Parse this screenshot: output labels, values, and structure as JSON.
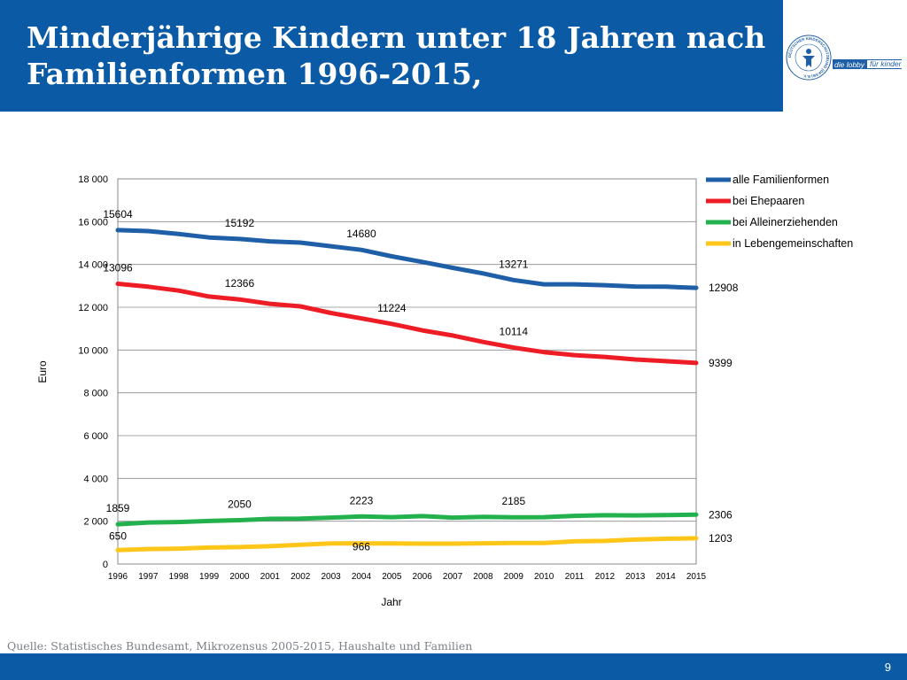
{
  "slide": {
    "title": "Minderjährige Kindern unter 18 Jahren nach Familienformen 1996-2015,",
    "source": "Quelle: Statistisches Bundesamt, Mikrozensus 2005-2015, Haushalte und Familien",
    "page_number": "9"
  },
  "logo": {
    "seal_text": "DEUTSCHER KINDERSCHUTZBUND (DKSB) E.V.",
    "tag_part1": "die lobby",
    "tag_part2": "für kinder"
  },
  "colors": {
    "header": "#0b5aa6",
    "alle": "#1f5fa8",
    "ehepaare": "#ee1c24",
    "alleinerziehende": "#22b14c",
    "lebensgemeinschaften": "#ffc61a"
  },
  "chart_data": {
    "type": "line",
    "xlabel": "Jahr",
    "ylabel": "Euro",
    "ylim": [
      0,
      18000
    ],
    "yticks": [
      0,
      2000,
      4000,
      6000,
      8000,
      10000,
      12000,
      14000,
      16000,
      18000
    ],
    "ytick_labels": [
      "0",
      "2 000",
      "4 000",
      "6 000",
      "8 000",
      "10 000",
      "12 000",
      "14 000",
      "16 000",
      "18 000"
    ],
    "x": [
      "1996",
      "1997",
      "1998",
      "1999",
      "2000",
      "2001",
      "2002",
      "2003",
      "2004",
      "2005",
      "2006",
      "2007",
      "2008",
      "2009",
      "2010",
      "2011",
      "2012",
      "2013",
      "2014",
      "2015"
    ],
    "grid": true,
    "legend_position": "right",
    "series": [
      {
        "name": "alle Familienformen",
        "color": "#1f5fa8",
        "values": [
          15604,
          15560,
          15420,
          15260,
          15192,
          15080,
          15020,
          14850,
          14680,
          14380,
          14120,
          13840,
          13580,
          13271,
          13070,
          13070,
          13030,
          12970,
          12960,
          12908
        ],
        "labels": [
          {
            "index": 0,
            "text": "15604"
          },
          {
            "index": 4,
            "text": "15192"
          },
          {
            "index": 8,
            "text": "14680"
          },
          {
            "index": 13,
            "text": "13271"
          },
          {
            "index": 19,
            "text": "12908"
          }
        ]
      },
      {
        "name": "bei Ehepaaren",
        "color": "#ee1c24",
        "values": [
          13096,
          12960,
          12780,
          12500,
          12366,
          12160,
          12040,
          11730,
          11480,
          11224,
          10920,
          10680,
          10380,
          10114,
          9900,
          9760,
          9680,
          9560,
          9480,
          9399
        ],
        "labels": [
          {
            "index": 0,
            "text": "13096"
          },
          {
            "index": 4,
            "text": "12366"
          },
          {
            "index": 9,
            "text": "11224"
          },
          {
            "index": 13,
            "text": "10114"
          },
          {
            "index": 19,
            "text": "9399"
          }
        ]
      },
      {
        "name": "bei Alleinerziehenden",
        "color": "#22b14c",
        "values": [
          1859,
          1940,
          1960,
          2010,
          2050,
          2110,
          2120,
          2170,
          2223,
          2190,
          2240,
          2170,
          2200,
          2185,
          2190,
          2250,
          2280,
          2270,
          2290,
          2306
        ],
        "labels": [
          {
            "index": 0,
            "text": "1859"
          },
          {
            "index": 4,
            "text": "2050"
          },
          {
            "index": 8,
            "text": "2223"
          },
          {
            "index": 13,
            "text": "2185"
          },
          {
            "index": 19,
            "text": "2306"
          }
        ]
      },
      {
        "name": "in Lebengemeinschaften",
        "color": "#ffc61a",
        "values": [
          650,
          700,
          720,
          770,
          790,
          830,
          900,
          960,
          966,
          960,
          950,
          950,
          970,
          980,
          980,
          1060,
          1080,
          1140,
          1180,
          1203
        ],
        "labels": [
          {
            "index": 0,
            "text": "650"
          },
          {
            "index": 8,
            "text": "966"
          },
          {
            "index": 19,
            "text": "1203"
          }
        ]
      }
    ]
  }
}
